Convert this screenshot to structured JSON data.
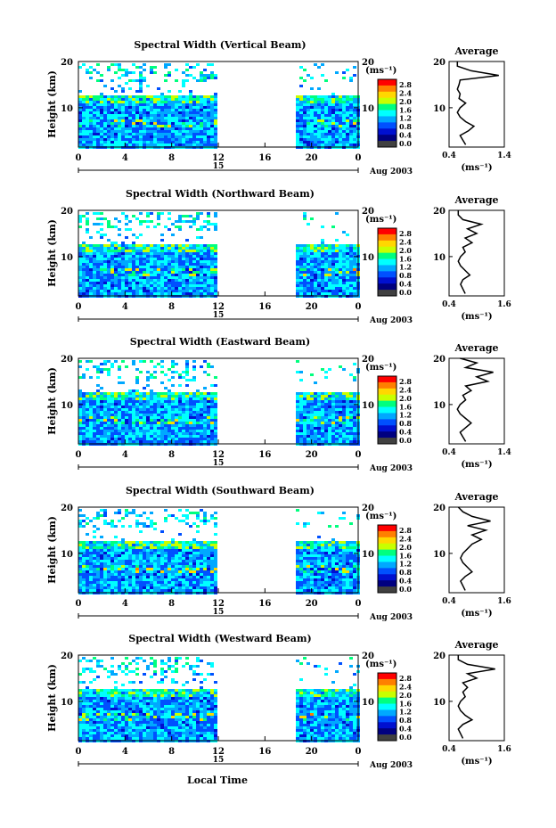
{
  "page": {
    "xlabel": "Local Time",
    "date_label": "Aug 2003",
    "day_label": "15"
  },
  "colorbar": {
    "unit": "(ms⁻¹)",
    "ticks": [
      "2.8",
      "2.4",
      "2.0",
      "1.6",
      "1.2",
      "0.8",
      "0.4",
      "0.0"
    ],
    "colors": [
      "#ff0000",
      "#ff7f00",
      "#ffd700",
      "#c8ff00",
      "#00ff7f",
      "#00ffff",
      "#00a8ff",
      "#0050ff",
      "#0010d0",
      "#000080",
      "#404040"
    ]
  },
  "chart_data": [
    {
      "type": "heatmap",
      "title": "Spectral Width (Vertical Beam)",
      "ylabel": "Height (km)",
      "xticks": [
        "0",
        "4",
        "8",
        "12",
        "16",
        "20",
        "0"
      ],
      "yticks": [
        "20",
        "10"
      ],
      "xlim": [
        0,
        24
      ],
      "ylim": [
        1.5,
        20
      ],
      "data_gap_hours": [
        12,
        18.5
      ],
      "profile": {
        "title": "Average",
        "xlabel": "(ms⁻¹)",
        "xticks": [
          "0.4",
          "1.4"
        ],
        "xlim": [
          0.4,
          1.4
        ],
        "heights": [
          2,
          3,
          4,
          5,
          6,
          7,
          8,
          9,
          10,
          11,
          12,
          13,
          14,
          15,
          16,
          17,
          18,
          19,
          20
        ],
        "values": [
          0.7,
          0.65,
          0.6,
          0.75,
          0.85,
          0.7,
          0.6,
          0.55,
          0.6,
          0.7,
          0.58,
          0.6,
          0.55,
          0.58,
          0.6,
          1.3,
          0.8,
          0.55,
          0.55
        ]
      }
    },
    {
      "type": "heatmap",
      "title": "Spectral Width (Northward Beam)",
      "ylabel": "Height (km)",
      "xticks": [
        "0",
        "4",
        "8",
        "12",
        "16",
        "20",
        "0"
      ],
      "yticks": [
        "20",
        "10"
      ],
      "xlim": [
        0,
        24
      ],
      "ylim": [
        1.5,
        20
      ],
      "data_gap_hours": [
        12,
        18.5
      ],
      "profile": {
        "title": "Average",
        "xlabel": "(ms⁻¹)",
        "xticks": [
          "0.4",
          "1.6"
        ],
        "xlim": [
          0.4,
          1.6
        ],
        "heights": [
          2,
          3,
          4,
          5,
          6,
          7,
          8,
          9,
          10,
          11,
          12,
          13,
          14,
          15,
          16,
          17,
          18,
          19,
          20
        ],
        "values": [
          0.75,
          0.7,
          0.65,
          0.7,
          0.85,
          0.75,
          0.65,
          0.6,
          0.65,
          0.75,
          0.7,
          0.9,
          0.75,
          1.0,
          0.8,
          1.1,
          0.7,
          0.6,
          0.6
        ]
      }
    },
    {
      "type": "heatmap",
      "title": "Spectral Width (Eastward Beam)",
      "ylabel": "Height (km)",
      "xticks": [
        "0",
        "4",
        "8",
        "12",
        "16",
        "20",
        "0"
      ],
      "yticks": [
        "20",
        "10"
      ],
      "xlim": [
        0,
        24
      ],
      "ylim": [
        1.5,
        20
      ],
      "data_gap_hours": [
        12,
        18.5
      ],
      "profile": {
        "title": "Average",
        "xlabel": "(ms⁻¹)",
        "xticks": [
          "0.4",
          "1.4"
        ],
        "xlim": [
          0.4,
          1.4
        ],
        "heights": [
          2,
          3,
          4,
          5,
          6,
          7,
          8,
          9,
          10,
          11,
          12,
          13,
          14,
          15,
          16,
          17,
          18,
          19,
          20
        ],
        "values": [
          0.7,
          0.65,
          0.6,
          0.7,
          0.8,
          0.7,
          0.6,
          0.55,
          0.6,
          0.7,
          0.65,
          0.8,
          0.7,
          1.1,
          0.9,
          1.2,
          0.7,
          0.9,
          0.6
        ]
      }
    },
    {
      "type": "heatmap",
      "title": "Spectral Width (Southward Beam)",
      "ylabel": "Height (km)",
      "xticks": [
        "0",
        "4",
        "8",
        "12",
        "16",
        "20",
        "0"
      ],
      "yticks": [
        "20",
        "10"
      ],
      "xlim": [
        0,
        24
      ],
      "ylim": [
        1.5,
        20
      ],
      "data_gap_hours": [
        12,
        18.5
      ],
      "profile": {
        "title": "Average",
        "xlabel": "(ms⁻¹)",
        "xticks": [
          "0.4",
          "1.6"
        ],
        "xlim": [
          0.4,
          1.6
        ],
        "heights": [
          2,
          3,
          4,
          5,
          6,
          7,
          8,
          9,
          10,
          11,
          12,
          13,
          14,
          15,
          16,
          17,
          18,
          19,
          20
        ],
        "values": [
          0.75,
          0.7,
          0.65,
          0.75,
          0.9,
          0.8,
          0.7,
          0.65,
          0.7,
          0.8,
          0.9,
          1.1,
          0.9,
          1.2,
          0.8,
          1.3,
          0.9,
          0.7,
          0.6
        ]
      }
    },
    {
      "type": "heatmap",
      "title": "Spectral Width (Westward Beam)",
      "ylabel": "Height (km)",
      "xticks": [
        "0",
        "4",
        "8",
        "12",
        "16",
        "20",
        "0"
      ],
      "yticks": [
        "20",
        "10"
      ],
      "xlim": [
        0,
        24
      ],
      "ylim": [
        1.5,
        20
      ],
      "data_gap_hours": [
        12,
        18.5
      ],
      "profile": {
        "title": "Average",
        "xlabel": "(ms⁻¹)",
        "xticks": [
          "0.4",
          "1.6"
        ],
        "xlim": [
          0.4,
          1.6
        ],
        "heights": [
          2,
          3,
          4,
          5,
          6,
          7,
          8,
          9,
          10,
          11,
          12,
          13,
          14,
          15,
          16,
          17,
          18,
          19,
          20
        ],
        "values": [
          0.7,
          0.65,
          0.6,
          0.7,
          0.9,
          0.75,
          0.65,
          0.6,
          0.65,
          0.75,
          0.7,
          0.8,
          0.7,
          1.0,
          0.8,
          1.4,
          0.8,
          0.6,
          0.6
        ]
      }
    }
  ]
}
